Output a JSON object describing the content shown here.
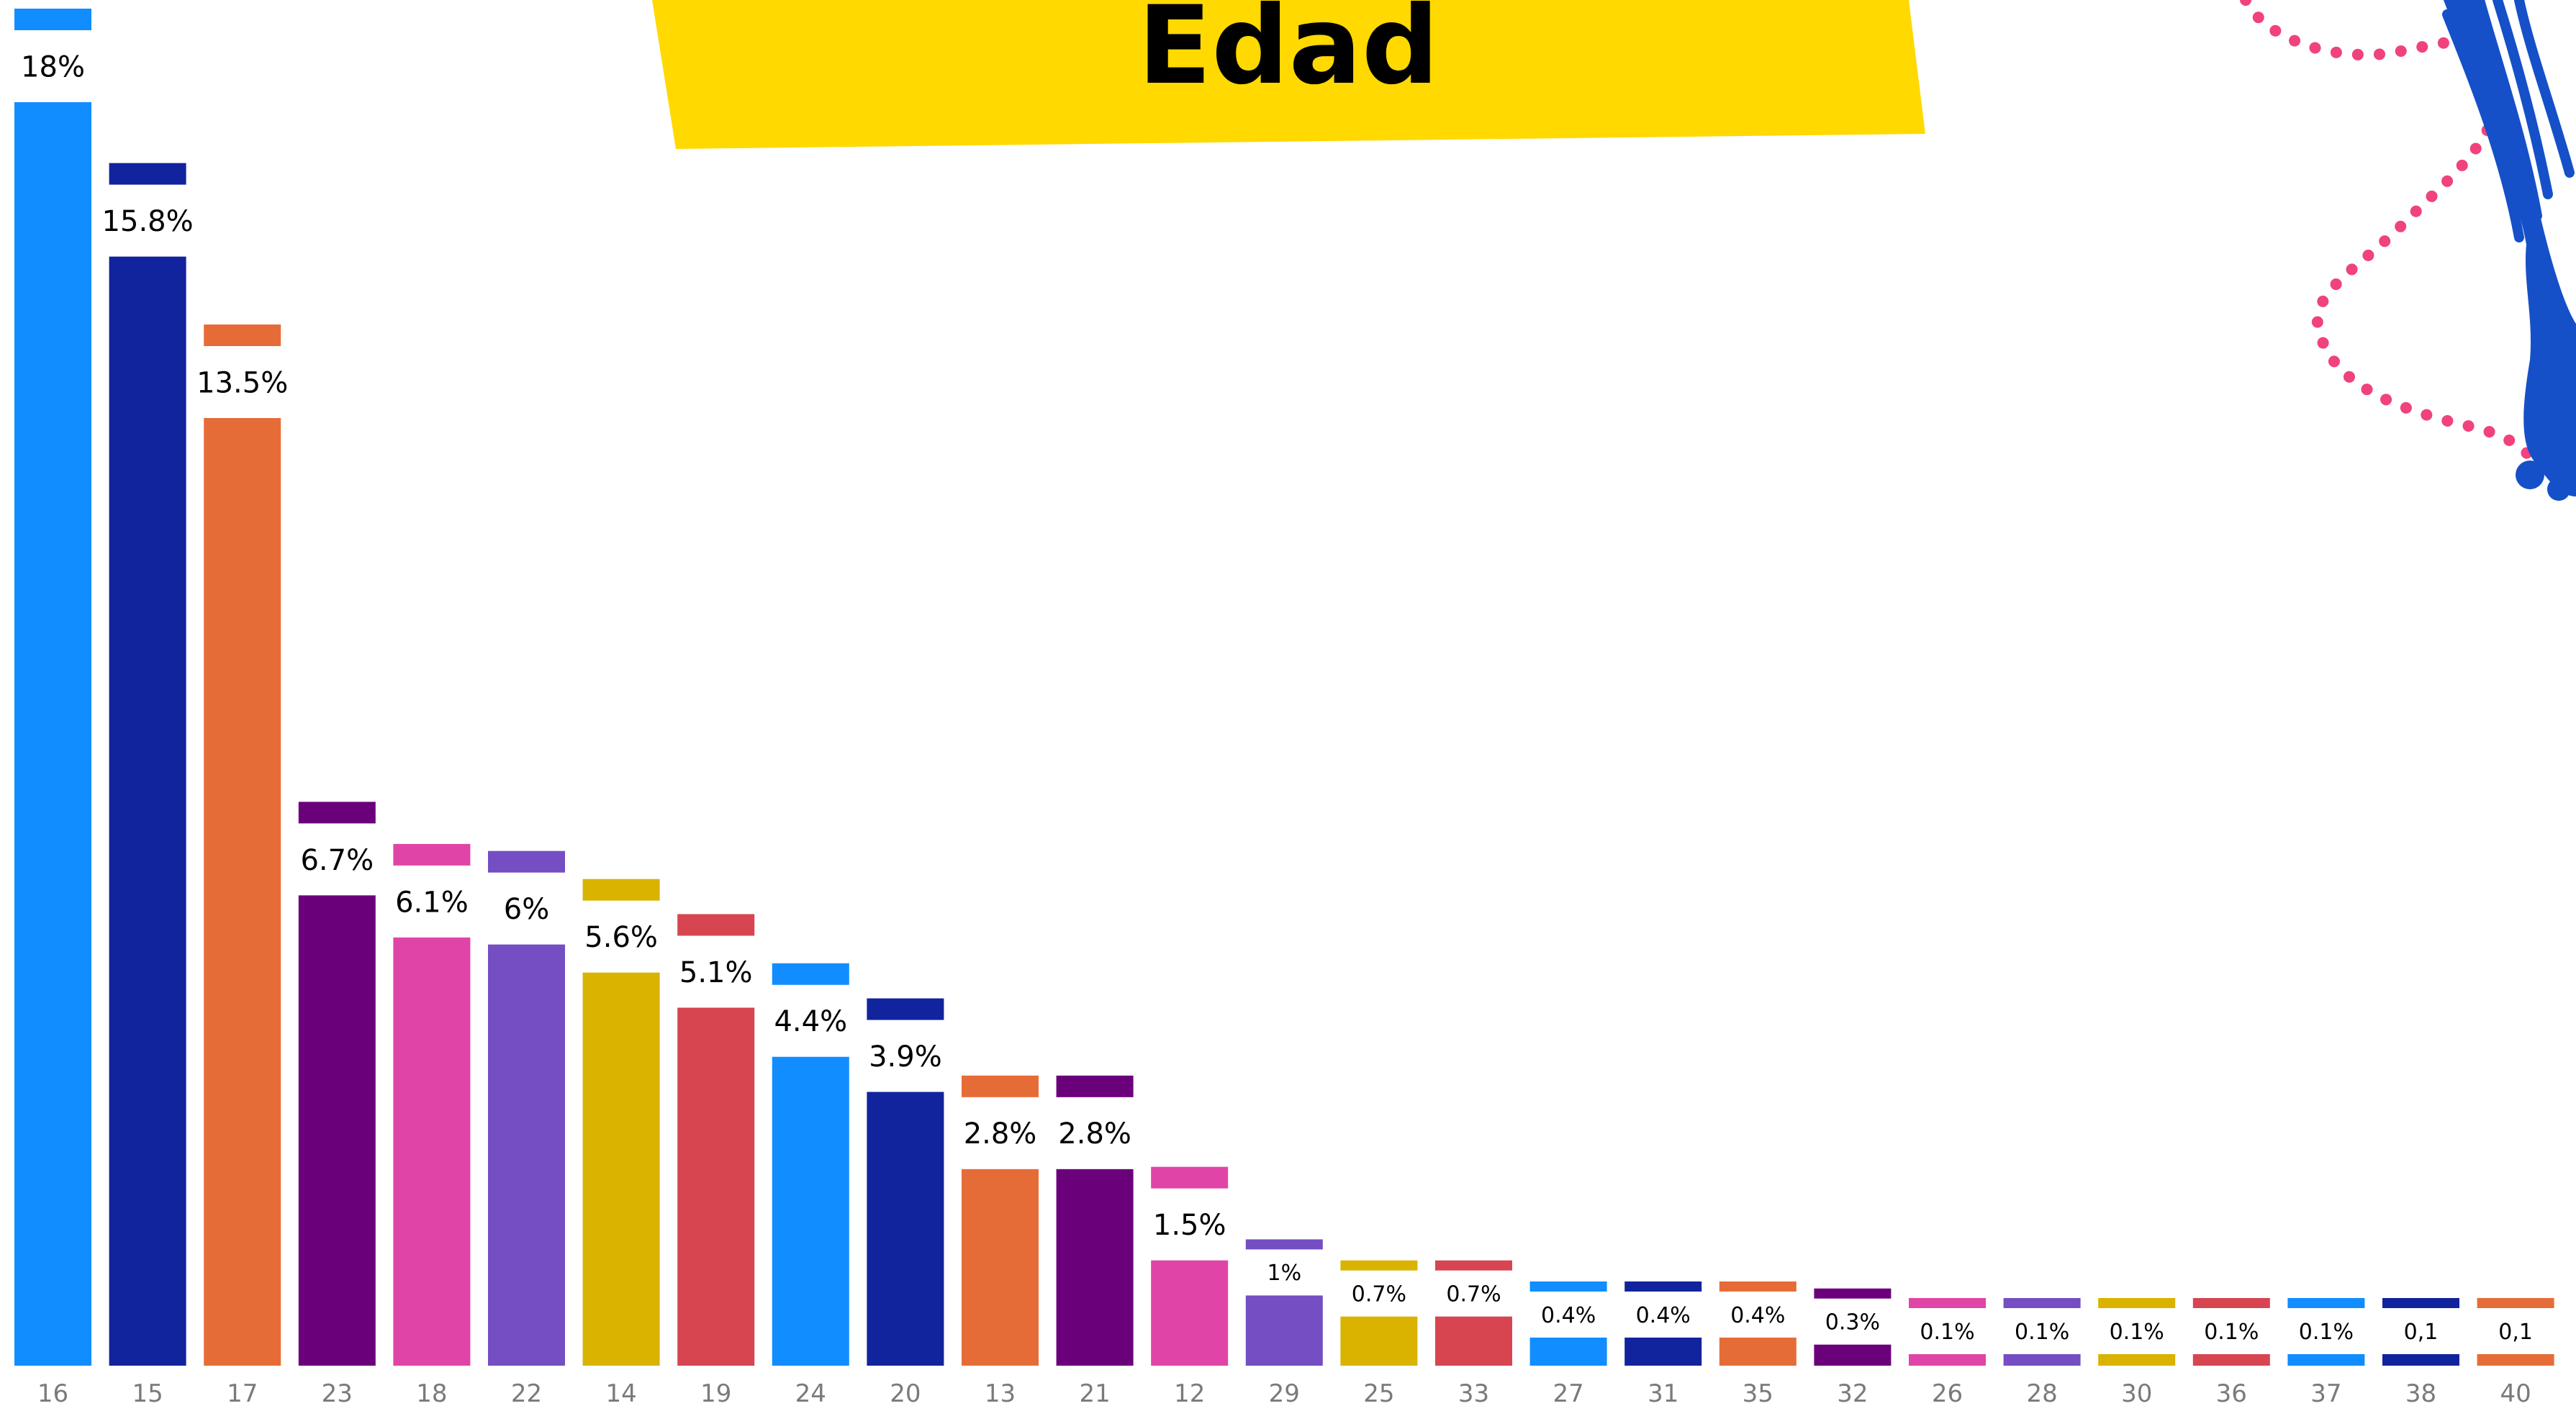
{
  "title": "Edad",
  "colors": {
    "banner": "#FFD900",
    "background": "#FFFFFF",
    "dots": "#F0427F",
    "figure": "#1550C8",
    "palette": [
      "#118DFF",
      "#12239E",
      "#E66C37",
      "#6B007B",
      "#E044A7",
      "#744EC2",
      "#D9B300",
      "#D64550"
    ]
  },
  "decoration": {
    "icon": "figure-with-dotted-trail-icon"
  },
  "chart_data": {
    "type": "bar",
    "title": "Edad",
    "xlabel": "",
    "ylabel": "",
    "ylim": [
      0,
      18
    ],
    "grid": false,
    "legend": "none",
    "categories": [
      "16",
      "15",
      "17",
      "23",
      "18",
      "22",
      "14",
      "19",
      "24",
      "20",
      "13",
      "21",
      "12",
      "29",
      "25",
      "33",
      "27",
      "31",
      "35",
      "32",
      "26",
      "28",
      "30",
      "36",
      "37",
      "38",
      "40"
    ],
    "values": [
      18,
      15.8,
      13.5,
      6.7,
      6.1,
      6,
      5.6,
      5.1,
      4.4,
      3.9,
      2.8,
      2.8,
      1.5,
      1,
      0.7,
      0.7,
      0.4,
      0.4,
      0.4,
      0.3,
      0.1,
      0.1,
      0.1,
      0.1,
      0.1,
      0.1,
      0.1
    ],
    "data_labels": [
      "18%",
      "15.8%",
      "13.5%",
      "6.7%",
      "6.1%",
      "6%",
      "5.6%",
      "5.1%",
      "4.4%",
      "3.9%",
      "2.8%",
      "2.8%",
      "1.5%",
      "1%",
      "0.7%",
      "0.7%",
      "0.4%",
      "0.4%",
      "0.4%",
      "0.3%",
      "0.1%",
      "0.1%",
      "0.1%",
      "0.1%",
      "0.1%",
      "0,1",
      "0,1"
    ]
  }
}
